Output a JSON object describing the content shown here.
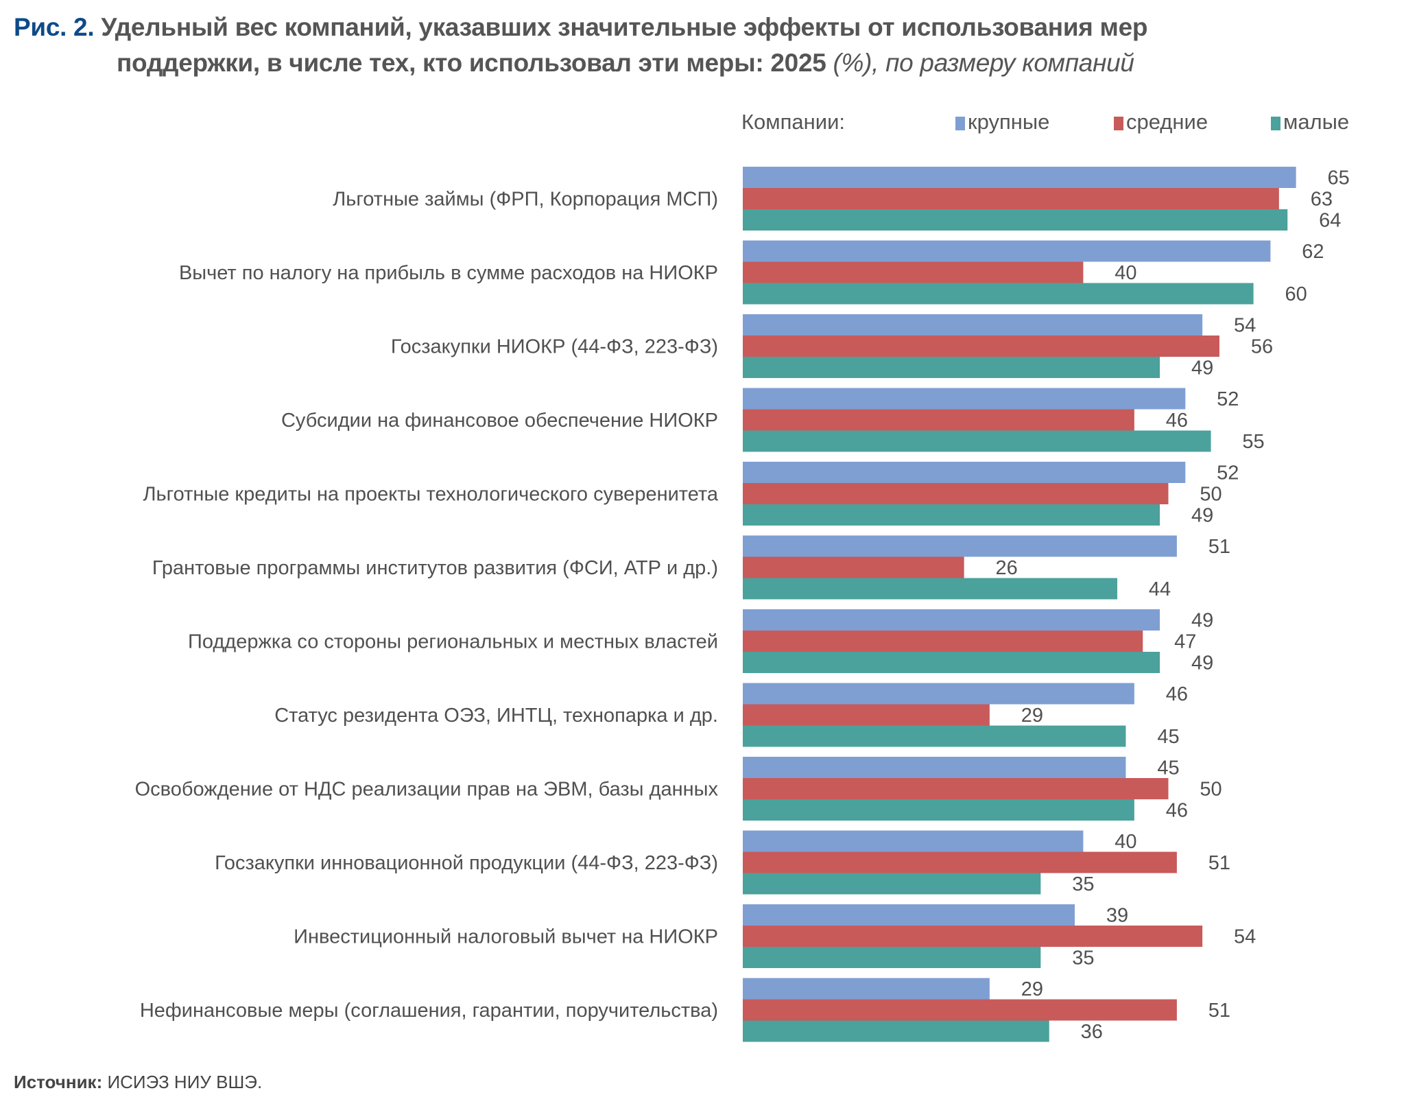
{
  "title": {
    "figure": "Рис. 2.",
    "line1": "Удельный вес компаний, указавших значительные эффекты от использования мер",
    "line2_bold": "поддержки, в числе тех, кто использовал эти меры: 2025",
    "line2_italic": " (%), по размеру компаний"
  },
  "legend": {
    "prefix": "Компании:"
  },
  "source": {
    "label": "Источник:",
    "text": " ИСИЭЗ НИУ ВШЭ."
  },
  "chart_data": {
    "type": "bar",
    "orientation": "horizontal",
    "title": "Удельный вес компаний, указавших значительные эффекты от использования мер поддержки, в числе тех, кто использовал эти меры: 2025 (%), по размеру компаний",
    "legend_position": "top-right",
    "grid": false,
    "xlim": [
      0,
      70
    ],
    "categories": [
      "Льготные займы (ФРП, Корпорация МСП)",
      "Вычет по налогу на прибыль в сумме расходов на НИОКР",
      "Госзакупки НИОКР (44-ФЗ, 223-ФЗ)",
      "Субсидии на финансовое обеспечение НИОКР",
      "Льготные кредиты на проекты технологического суверенитета",
      "Грантовые программы институтов развития (ФСИ, АТР и др.)",
      "Поддержка со стороны региональных и местных властей",
      "Статус резидента ОЭЗ, ИНТЦ, технопарка и др.",
      "Освобождение от НДС реализации прав на ЭВМ, базы данных",
      "Госзакупки инновационной продукции (44-ФЗ, 223-ФЗ)",
      "Инвестиционный налоговый вычет на НИОКР",
      "Нефинансовые меры (соглашения, гарантии, поручительства)"
    ],
    "series": [
      {
        "name": "крупные",
        "color": "#7F9FD3",
        "values": [
          65,
          62,
          54,
          52,
          52,
          51,
          49,
          46,
          45,
          40,
          39,
          29
        ]
      },
      {
        "name": "средние",
        "color": "#C85A5A",
        "values": [
          63,
          40,
          56,
          46,
          50,
          26,
          47,
          29,
          50,
          51,
          54,
          51
        ]
      },
      {
        "name": "малые",
        "color": "#4BA19C",
        "values": [
          64,
          60,
          49,
          55,
          49,
          44,
          49,
          45,
          46,
          35,
          35,
          36
        ]
      }
    ]
  }
}
